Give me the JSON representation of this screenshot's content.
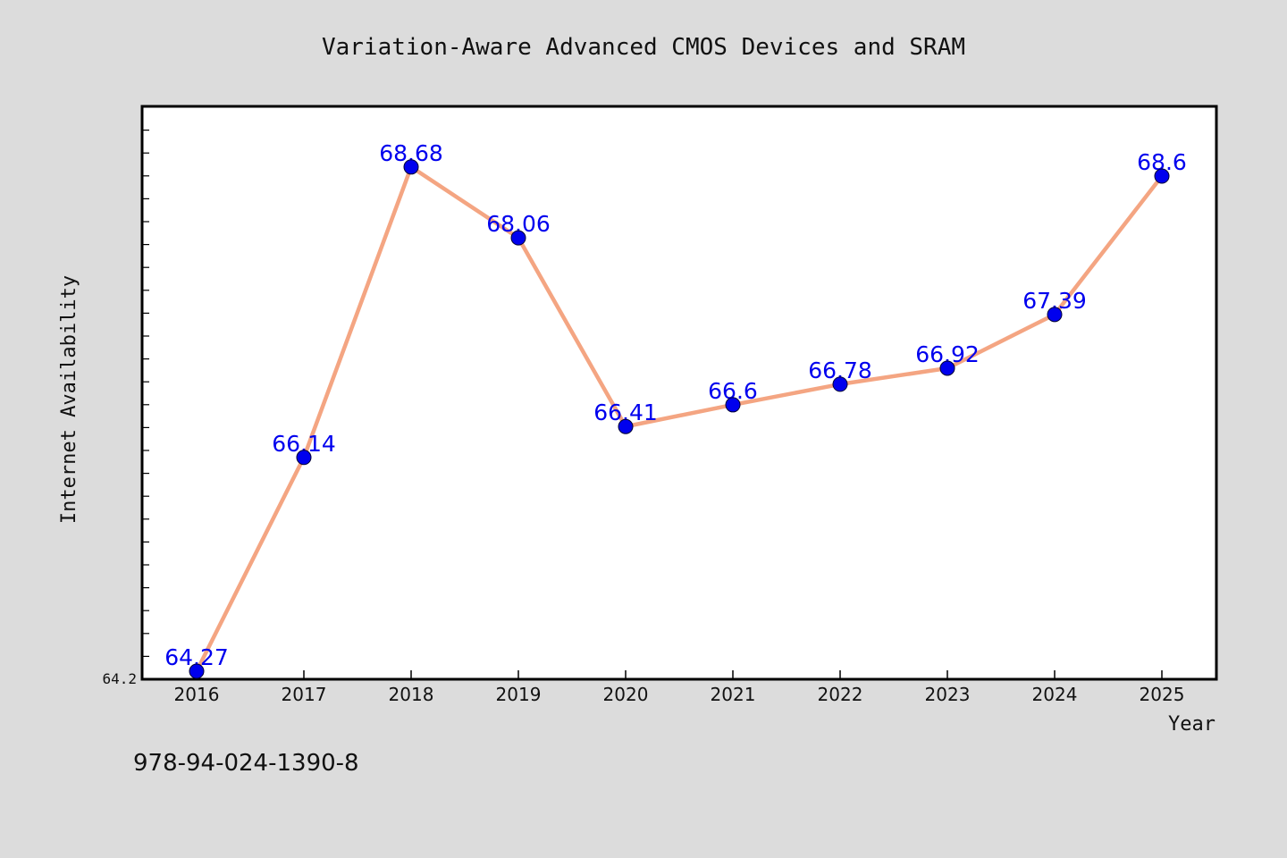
{
  "chart_data": {
    "type": "line",
    "title": "Variation-Aware Advanced CMOS Devices and SRAM",
    "xlabel": "Year",
    "ylabel": "Internet Availability",
    "categories": [
      "2016",
      "2017",
      "2018",
      "2019",
      "2020",
      "2021",
      "2022",
      "2023",
      "2024",
      "2025"
    ],
    "series": [
      {
        "values": [
          64.27,
          66.14,
          68.68,
          68.06,
          66.41,
          66.6,
          66.78,
          66.92,
          67.39,
          68.6
        ],
        "labels": [
          "64.27",
          "66.14",
          "68.68",
          "68.06",
          "66.41",
          "66.6",
          "66.78",
          "66.92",
          "67.39",
          "68.6"
        ]
      }
    ],
    "ylim": [
      64.2,
      69.21
    ],
    "yticks": [
      "64.2"
    ],
    "grid": false,
    "legend": "none",
    "colors": {
      "line": "#f4a582",
      "marker": "#0000ee",
      "label": "#0000ee",
      "plot_bg": "#ffffff",
      "page_bg": "#dcdcdc"
    }
  },
  "footnote": "978-94-024-1390-8"
}
